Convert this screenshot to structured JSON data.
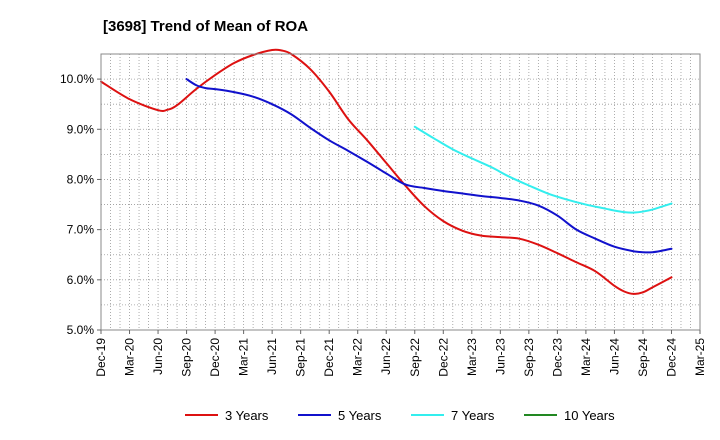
{
  "chart_data": {
    "type": "line",
    "title": "[3698]  Trend of Mean of ROA",
    "xlabel": "",
    "ylabel": "",
    "ylim": [
      5.0,
      10.5
    ],
    "yticks": [
      5.0,
      6.0,
      7.0,
      8.0,
      9.0,
      10.0
    ],
    "ytick_labels": [
      "5.0%",
      "6.0%",
      "7.0%",
      "8.0%",
      "9.0%",
      "10.0%"
    ],
    "x_months_range": [
      0,
      63
    ],
    "xtick_labels": [
      "Dec-19",
      "Mar-20",
      "Jun-20",
      "Sep-20",
      "Dec-20",
      "Mar-21",
      "Jun-21",
      "Sep-21",
      "Dec-21",
      "Mar-22",
      "Jun-22",
      "Sep-22",
      "Dec-22",
      "Mar-23",
      "Jun-23",
      "Sep-23",
      "Dec-23",
      "Mar-24",
      "Jun-24",
      "Sep-24",
      "Dec-24",
      "Mar-25"
    ],
    "grid": true,
    "legend_position": "bottom",
    "series": [
      {
        "name": "3 Years",
        "color": "#dd1111",
        "x": [
          0,
          3,
          6,
          7,
          8,
          10,
          12,
          14,
          16,
          18,
          19,
          20,
          22,
          24,
          26,
          28,
          30,
          32,
          34,
          36,
          38,
          40,
          42,
          44,
          46,
          48,
          50,
          52,
          54,
          55,
          56,
          57,
          58,
          59,
          60
        ],
        "y": [
          9.95,
          9.6,
          9.38,
          9.39,
          9.48,
          9.8,
          10.08,
          10.32,
          10.48,
          10.58,
          10.57,
          10.5,
          10.2,
          9.75,
          9.2,
          8.78,
          8.33,
          7.88,
          7.47,
          7.17,
          6.98,
          6.88,
          6.85,
          6.82,
          6.7,
          6.53,
          6.35,
          6.17,
          5.88,
          5.77,
          5.72,
          5.75,
          5.85,
          5.95,
          6.05
        ]
      },
      {
        "name": "5 Years",
        "color": "#1111cc",
        "x": [
          9,
          10,
          11,
          12,
          14,
          16,
          18,
          20,
          22,
          24,
          26,
          28,
          30,
          32,
          34,
          36,
          38,
          40,
          42,
          44,
          46,
          48,
          50,
          52,
          54,
          56,
          57,
          58,
          59,
          60
        ],
        "y": [
          10.0,
          9.88,
          9.82,
          9.8,
          9.74,
          9.65,
          9.5,
          9.3,
          9.03,
          8.78,
          8.57,
          8.35,
          8.12,
          7.9,
          7.83,
          7.77,
          7.72,
          7.67,
          7.63,
          7.58,
          7.48,
          7.28,
          7.0,
          6.82,
          6.66,
          6.57,
          6.55,
          6.55,
          6.58,
          6.62
        ]
      },
      {
        "name": "7 Years",
        "color": "#33eeee",
        "x": [
          33,
          35,
          37,
          39,
          41,
          43,
          45,
          47,
          49,
          51,
          53,
          54,
          55,
          56,
          57,
          58,
          59,
          60
        ],
        "y": [
          9.05,
          8.82,
          8.6,
          8.42,
          8.25,
          8.05,
          7.88,
          7.72,
          7.6,
          7.5,
          7.42,
          7.38,
          7.35,
          7.34,
          7.36,
          7.4,
          7.46,
          7.52
        ]
      },
      {
        "name": "10 Years",
        "color": "#228822",
        "x": [],
        "y": []
      }
    ]
  }
}
